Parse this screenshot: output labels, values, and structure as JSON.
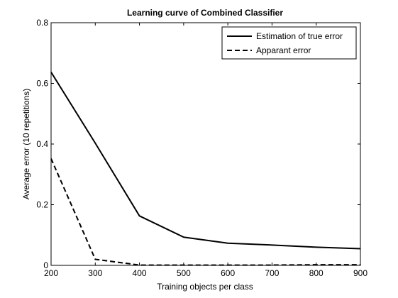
{
  "chart_data": {
    "type": "line",
    "title": "Learning curve of Combined Classifier",
    "xlabel": "Training objects per class",
    "ylabel": "Average error (10 repetitions)",
    "xlim": [
      200,
      900
    ],
    "ylim": [
      0,
      0.8
    ],
    "xticks": [
      200,
      300,
      400,
      500,
      600,
      700,
      800,
      900
    ],
    "yticks": [
      0,
      0.2,
      0.4,
      0.6,
      0.8
    ],
    "ytick_labels": [
      "0",
      "0.2",
      "0.4",
      "0.6",
      "0.8"
    ],
    "grid": false,
    "legend_position": "top-right",
    "x": [
      200,
      300,
      400,
      500,
      600,
      700,
      800,
      900
    ],
    "series": [
      {
        "name": "Estimation of true error",
        "style": "solid",
        "color": "#000000",
        "values": [
          0.637,
          0.403,
          0.163,
          0.093,
          0.073,
          0.067,
          0.06,
          0.055
        ]
      },
      {
        "name": "Apparant error",
        "style": "dashed",
        "color": "#000000",
        "values": [
          0.352,
          0.02,
          0.001,
          0.001,
          0.001,
          0.001,
          0.002,
          0.002
        ]
      }
    ]
  }
}
